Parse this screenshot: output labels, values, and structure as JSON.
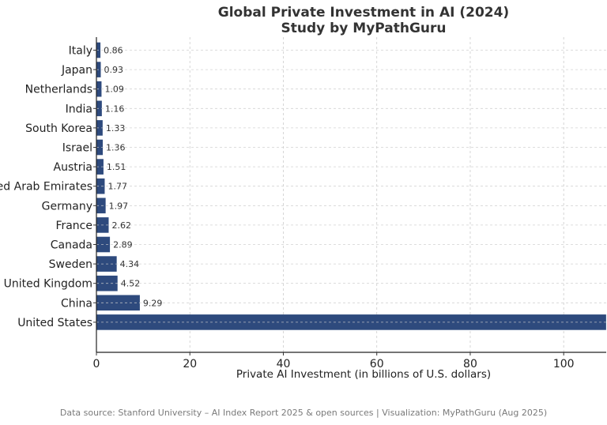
{
  "chart_data": {
    "type": "bar",
    "orientation": "horizontal",
    "title": "Global Private Investment in AI (2024)",
    "subtitle": "Study by MyPathGuru",
    "xlabel": "Private AI Investment (in billions of U.S. dollars)",
    "ylabel": "",
    "categories": [
      "Italy",
      "Japan",
      "Netherlands",
      "India",
      "South Korea",
      "Israel",
      "Austria",
      "United Arab Emirates",
      "Germany",
      "France",
      "Canada",
      "Sweden",
      "United Kingdom",
      "China",
      "United States"
    ],
    "values": [
      0.86,
      0.93,
      1.09,
      1.16,
      1.33,
      1.36,
      1.51,
      1.77,
      1.97,
      2.62,
      2.89,
      4.34,
      4.52,
      9.29,
      109.08
    ],
    "data_labels": [
      "0.86",
      "0.93",
      "1.09",
      "1.16",
      "1.33",
      "1.36",
      "1.51",
      "1.77",
      "1.97",
      "2.62",
      "2.89",
      "4.34",
      "4.52",
      "9.29",
      ""
    ],
    "xlim": [
      0,
      109.1
    ],
    "xticks": [
      0,
      20,
      40,
      60,
      80,
      100
    ],
    "grid": true,
    "bar_color": "#2e4a7d",
    "grid_color": "#cccccc"
  },
  "footer": "Data source: Stanford University – AI Index Report 2025 & open sources | Visualization: MyPathGuru (Aug 2025)"
}
